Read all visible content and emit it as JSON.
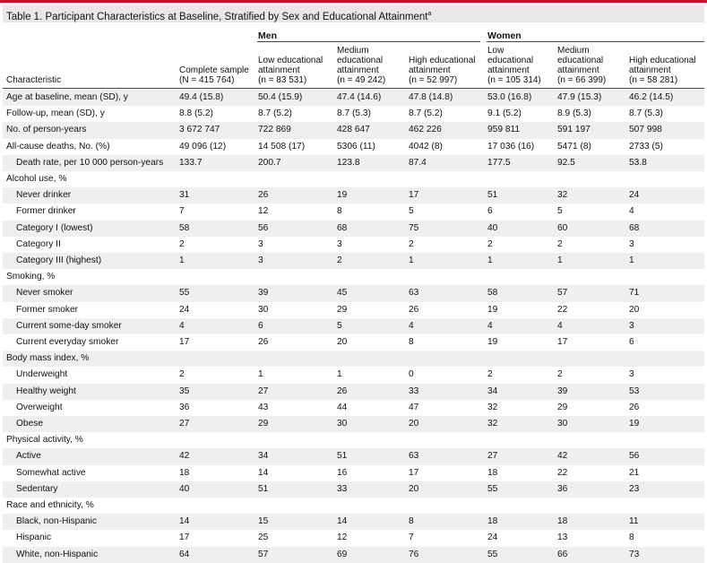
{
  "title": "Table 1. Participant Characteristics at Baseline, Stratified by Sex and Educational Attainment",
  "title_footnote": "a",
  "groups": {
    "men": "Men",
    "women": "Women"
  },
  "columns": [
    {
      "lines": [
        "Characteristic"
      ]
    },
    {
      "lines": [
        "Complete sample",
        "(N = 415 764)"
      ]
    },
    {
      "lines": [
        "Low educational",
        "attainment",
        "(n = 83 531)"
      ]
    },
    {
      "lines": [
        "Medium",
        "educational",
        "attainment",
        "(n = 49 242)"
      ]
    },
    {
      "lines": [
        "High educational",
        "attainment",
        "(n = 52 997)"
      ]
    },
    {
      "lines": [
        "Low",
        "educational",
        "attainment",
        "(n = 105 314)"
      ]
    },
    {
      "lines": [
        "Medium",
        "educational",
        "attainment",
        "(n = 66 399)"
      ]
    },
    {
      "lines": [
        "High educational",
        "attainment",
        "(n = 58 281)"
      ]
    }
  ],
  "rows": [
    {
      "label": "Age at baseline, mean (SD), y",
      "indent": false,
      "values": [
        "49.4 (15.8)",
        "50.4 (15.9)",
        "47.4 (14.6)",
        "47.8 (14.8)",
        "53.0 (16.8)",
        "47.9 (15.3)",
        "46.2 (14.5)"
      ]
    },
    {
      "label": "Follow-up, mean (SD), y",
      "indent": false,
      "values": [
        "8.8 (5.2)",
        "8.7 (5.2)",
        "8.7 (5.3)",
        "8.7 (5.2)",
        "9.1 (5.2)",
        "8.9 (5.3)",
        "8.7 (5.3)"
      ]
    },
    {
      "label": "No. of person-years",
      "indent": false,
      "values": [
        "3 672 747",
        "722 869",
        "428 647",
        "462 226",
        "959 811",
        "591 197",
        "507 998"
      ]
    },
    {
      "label": "All-cause deaths, No. (%)",
      "indent": false,
      "values": [
        "49 096 (12)",
        "14 508 (17)",
        "5306 (11)",
        "4042 (8)",
        "17 036 (16)",
        "5471 (8)",
        "2733 (5)"
      ]
    },
    {
      "label": "Death rate, per 10 000 person-years",
      "indent": true,
      "values": [
        "133.7",
        "200.7",
        "123.8",
        "87.4",
        "177.5",
        "92.5",
        "53.8"
      ]
    },
    {
      "label": "Alcohol use, %",
      "indent": false,
      "values": [
        "",
        "",
        "",
        "",
        "",
        "",
        ""
      ]
    },
    {
      "label": "Never drinker",
      "indent": true,
      "values": [
        "31",
        "26",
        "19",
        "17",
        "51",
        "32",
        "24"
      ]
    },
    {
      "label": "Former drinker",
      "indent": true,
      "values": [
        "7",
        "12",
        "8",
        "5",
        "6",
        "5",
        "4"
      ]
    },
    {
      "label": "Category I (lowest)",
      "indent": true,
      "values": [
        "58",
        "56",
        "68",
        "75",
        "40",
        "60",
        "68"
      ]
    },
    {
      "label": "Category II",
      "indent": true,
      "values": [
        "2",
        "3",
        "3",
        "2",
        "2",
        "2",
        "3"
      ]
    },
    {
      "label": "Category III (highest)",
      "indent": true,
      "values": [
        "1",
        "3",
        "2",
        "1",
        "1",
        "1",
        "1"
      ]
    },
    {
      "label": "Smoking, %",
      "indent": false,
      "values": [
        "",
        "",
        "",
        "",
        "",
        "",
        ""
      ]
    },
    {
      "label": "Never smoker",
      "indent": true,
      "values": [
        "55",
        "39",
        "45",
        "63",
        "58",
        "57",
        "71"
      ]
    },
    {
      "label": "Former smoker",
      "indent": true,
      "values": [
        "24",
        "30",
        "29",
        "26",
        "19",
        "22",
        "20"
      ]
    },
    {
      "label": "Current some-day smoker",
      "indent": true,
      "values": [
        "4",
        "6",
        "5",
        "4",
        "4",
        "4",
        "3"
      ]
    },
    {
      "label": "Current everyday smoker",
      "indent": true,
      "values": [
        "17",
        "26",
        "20",
        "8",
        "19",
        "17",
        "6"
      ]
    },
    {
      "label": "Body mass index, %",
      "indent": false,
      "values": [
        "",
        "",
        "",
        "",
        "",
        "",
        ""
      ]
    },
    {
      "label": "Underweight",
      "indent": true,
      "values": [
        "2",
        "1",
        "1",
        "0",
        "2",
        "2",
        "3"
      ]
    },
    {
      "label": "Healthy weight",
      "indent": true,
      "values": [
        "35",
        "27",
        "26",
        "33",
        "34",
        "39",
        "53"
      ]
    },
    {
      "label": "Overweight",
      "indent": true,
      "values": [
        "36",
        "43",
        "44",
        "47",
        "32",
        "29",
        "26"
      ]
    },
    {
      "label": "Obese",
      "indent": true,
      "values": [
        "27",
        "29",
        "30",
        "20",
        "32",
        "30",
        "19"
      ]
    },
    {
      "label": "Physical activity, %",
      "indent": false,
      "values": [
        "",
        "",
        "",
        "",
        "",
        "",
        ""
      ]
    },
    {
      "label": "Active",
      "indent": true,
      "values": [
        "42",
        "34",
        "51",
        "63",
        "27",
        "42",
        "56"
      ]
    },
    {
      "label": "Somewhat active",
      "indent": true,
      "values": [
        "18",
        "14",
        "16",
        "17",
        "18",
        "22",
        "21"
      ]
    },
    {
      "label": "Sedentary",
      "indent": true,
      "values": [
        "40",
        "51",
        "33",
        "20",
        "55",
        "36",
        "23"
      ]
    },
    {
      "label": "Race and ethnicity, %",
      "indent": false,
      "values": [
        "",
        "",
        "",
        "",
        "",
        "",
        ""
      ]
    },
    {
      "label": "Black, non-Hispanic",
      "indent": true,
      "values": [
        "14",
        "15",
        "14",
        "8",
        "18",
        "18",
        "11"
      ]
    },
    {
      "label": "Hispanic",
      "indent": true,
      "values": [
        "17",
        "25",
        "12",
        "7",
        "24",
        "13",
        "8"
      ]
    },
    {
      "label": "White, non-Hispanic",
      "indent": true,
      "values": [
        "64",
        "57",
        "69",
        "76",
        "55",
        "66",
        "73"
      ]
    }
  ]
}
